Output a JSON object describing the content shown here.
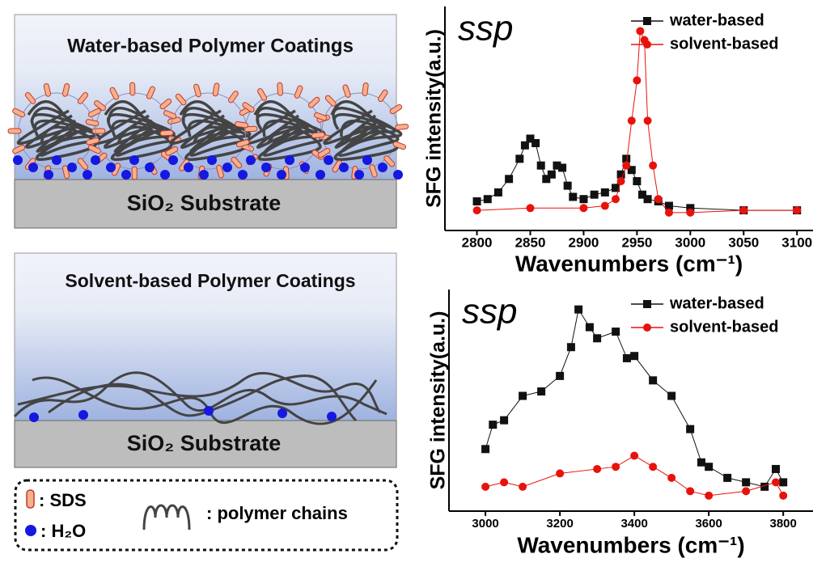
{
  "schematic": {
    "top_title": "Water-based Polymer Coatings",
    "top_substrate": "SiO₂ Substrate",
    "bottom_title": "Solvent-based Polymer Coatings",
    "bottom_substrate": "SiO₂ Substrate",
    "legend": {
      "sds": ": SDS",
      "water": ": H₂O",
      "chains": ": polymer chains"
    }
  },
  "chart_data": [
    {
      "type": "line",
      "annotation": "ssp",
      "y_label": "SFG intensity(a.u.)",
      "x_label": "Wavenumbers (cm⁻¹)",
      "xlim": [
        2770,
        3115
      ],
      "xticks": [
        2800,
        2850,
        2900,
        2950,
        3000,
        3050,
        3100
      ],
      "ylim": [
        0,
        1
      ],
      "legend": "top-right",
      "series": [
        {
          "name": "water-based",
          "color": "#111111",
          "marker": "square",
          "x": [
            2800,
            2810,
            2820,
            2830,
            2840,
            2845,
            2850,
            2855,
            2860,
            2865,
            2870,
            2875,
            2880,
            2885,
            2890,
            2900,
            2910,
            2920,
            2930,
            2935,
            2940,
            2945,
            2950,
            2955,
            2960,
            2970,
            2980,
            3000,
            3050,
            3100
          ],
          "values": [
            0.13,
            0.14,
            0.17,
            0.23,
            0.32,
            0.38,
            0.41,
            0.39,
            0.29,
            0.23,
            0.25,
            0.29,
            0.28,
            0.2,
            0.15,
            0.14,
            0.16,
            0.17,
            0.19,
            0.25,
            0.32,
            0.27,
            0.22,
            0.16,
            0.14,
            0.13,
            0.11,
            0.1,
            0.09,
            0.09
          ]
        },
        {
          "name": "solvent-based",
          "color": "#e8120c",
          "marker": "circle",
          "x": [
            2800,
            2850,
            2900,
            2920,
            2930,
            2935,
            2940,
            2945,
            2950,
            2953,
            2957,
            2960,
            2965,
            2970,
            2980,
            3000,
            3050,
            3100
          ],
          "values": [
            0.09,
            0.1,
            0.1,
            0.11,
            0.14,
            0.22,
            0.29,
            0.49,
            0.67,
            0.89,
            0.85,
            0.49,
            0.29,
            0.14,
            0.08,
            0.08,
            0.09,
            0.09
          ]
        }
      ]
    },
    {
      "type": "line",
      "annotation": "ssp",
      "y_label": "SFG intensity(a.u.)",
      "x_label": "Wavenumbers (cm⁻¹)",
      "xlim": [
        2902,
        3880
      ],
      "xticks": [
        3000,
        3200,
        3400,
        3600,
        3800
      ],
      "ylim": [
        0,
        1
      ],
      "legend": "top-right",
      "series": [
        {
          "name": "water-based",
          "color": "#111111",
          "marker": "square",
          "x": [
            3000,
            3020,
            3050,
            3100,
            3150,
            3200,
            3230,
            3250,
            3280,
            3300,
            3350,
            3380,
            3400,
            3450,
            3500,
            3550,
            3580,
            3600,
            3650,
            3700,
            3750,
            3780,
            3800
          ],
          "values": [
            0.28,
            0.39,
            0.41,
            0.52,
            0.54,
            0.61,
            0.74,
            0.91,
            0.83,
            0.78,
            0.81,
            0.69,
            0.7,
            0.59,
            0.52,
            0.37,
            0.22,
            0.2,
            0.15,
            0.13,
            0.11,
            0.19,
            0.13
          ]
        },
        {
          "name": "solvent-based",
          "color": "#e8120c",
          "marker": "circle",
          "x": [
            3000,
            3050,
            3100,
            3200,
            3300,
            3350,
            3400,
            3450,
            3500,
            3550,
            3600,
            3700,
            3780,
            3800
          ],
          "values": [
            0.11,
            0.13,
            0.11,
            0.17,
            0.19,
            0.2,
            0.25,
            0.2,
            0.15,
            0.09,
            0.07,
            0.09,
            0.13,
            0.07
          ]
        }
      ]
    }
  ]
}
